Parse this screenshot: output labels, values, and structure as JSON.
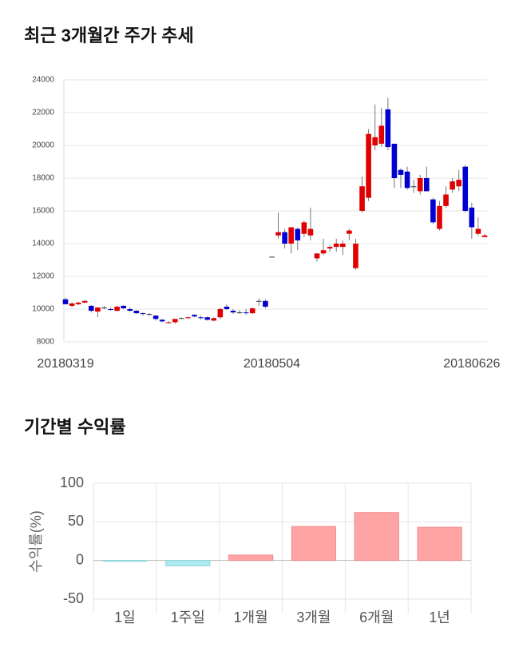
{
  "chart_data": [
    {
      "type": "candlestick",
      "title": "최근 3개월간 주가 추세",
      "categories": [
        "20180319",
        null,
        null,
        null,
        null,
        null,
        null,
        null,
        null,
        null,
        null,
        null,
        null,
        null,
        null,
        null,
        null,
        null,
        null,
        null,
        null,
        null,
        null,
        null,
        null,
        null,
        null,
        null,
        null,
        null,
        null,
        null,
        "20180504",
        null,
        null,
        null,
        null,
        null,
        null,
        null,
        null,
        null,
        null,
        null,
        null,
        null,
        null,
        null,
        null,
        null,
        null,
        null,
        null,
        null,
        null,
        null,
        null,
        null,
        null,
        null,
        null,
        null,
        null,
        "20180626",
        null,
        null
      ],
      "open": [
        10600,
        10200,
        10300,
        10400,
        10200,
        9850,
        10100,
        10000,
        9900,
        10200,
        10000,
        9900,
        9750,
        9700,
        9600,
        9350,
        9150,
        9200,
        9450,
        9450,
        9650,
        9500,
        9500,
        9300,
        9500,
        10150,
        9900,
        9800,
        9800,
        9750,
        10500,
        10500,
        13200,
        14500,
        14700,
        14000,
        14900,
        14600,
        14500,
        13100,
        13400,
        13700,
        13800,
        13800,
        14600,
        12500,
        16000,
        16800,
        20000,
        20100,
        22200,
        20100,
        18500,
        18400,
        17500,
        17200,
        18000,
        16700,
        14900,
        16300,
        17300,
        17500,
        18700,
        16200,
        14600,
        14400
      ],
      "high": [
        10700,
        10400,
        10450,
        10550,
        10250,
        10100,
        10200,
        10100,
        10200,
        10250,
        10100,
        9950,
        9800,
        9750,
        9650,
        9400,
        9250,
        9400,
        9500,
        9550,
        9700,
        9600,
        9550,
        9500,
        10100,
        10300,
        10000,
        9950,
        10000,
        10100,
        10650,
        10600,
        13200,
        15900,
        14900,
        15000,
        15000,
        15400,
        16200,
        13400,
        14300,
        13900,
        14300,
        14200,
        14900,
        14300,
        18100,
        21000,
        22500,
        22300,
        22900,
        20100,
        18600,
        18700,
        17900,
        18200,
        18700,
        16800,
        16600,
        17500,
        18000,
        18500,
        18800,
        16500,
        15600,
        14600
      ],
      "low": [
        10300,
        10100,
        10250,
        10350,
        9800,
        9500,
        10000,
        9900,
        9850,
        10000,
        9850,
        9700,
        9600,
        9600,
        9300,
        9200,
        9100,
        9100,
        9400,
        9400,
        9500,
        9350,
        9300,
        9250,
        9400,
        9950,
        9700,
        9700,
        9650,
        9700,
        10200,
        10050,
        13200,
        14300,
        13700,
        13400,
        13600,
        14400,
        14200,
        12900,
        13300,
        13500,
        13500,
        13300,
        14200,
        12400,
        15900,
        16600,
        19700,
        19900,
        19700,
        17400,
        17400,
        17300,
        17100,
        17000,
        17200,
        15200,
        14800,
        16200,
        17100,
        17200,
        15900,
        14300,
        14500,
        14400
      ],
      "close": [
        10300,
        10350,
        10400,
        10500,
        9900,
        10100,
        10100,
        9950,
        10150,
        10050,
        9900,
        9750,
        9700,
        9700,
        9400,
        9250,
        9200,
        9400,
        9450,
        9500,
        9550,
        9450,
        9350,
        9450,
        10000,
        10000,
        9800,
        9800,
        9750,
        10050,
        10500,
        10150,
        13200,
        14700,
        14000,
        15000,
        14200,
        15300,
        14900,
        13400,
        13600,
        13800,
        14000,
        14000,
        14800,
        14000,
        17500,
        20700,
        20500,
        21200,
        19900,
        18000,
        18200,
        17400,
        17500,
        18000,
        17200,
        15300,
        16300,
        17000,
        17800,
        17900,
        16000,
        15000,
        14900,
        14500
      ],
      "up_color": "#e00000",
      "down_color": "#0000d0",
      "ylim": [
        8000,
        24000
      ],
      "yticks": [
        8000,
        10000,
        12000,
        14000,
        16000,
        18000,
        20000,
        22000,
        24000
      ],
      "grid": true
    },
    {
      "type": "bar",
      "title": "기간별 수익률",
      "ylabel": "수익률(%)",
      "categories": [
        "1일",
        "1주일",
        "1개월",
        "3개월",
        "6개월",
        "1년"
      ],
      "values": [
        -0.2,
        -7,
        7,
        44,
        62,
        43
      ],
      "positive_color": "#ffa4a4",
      "negative_color": "#aeeaf2",
      "ylim": [
        -50,
        100
      ],
      "yticks": [
        -50,
        0,
        50,
        100
      ],
      "grid": true
    }
  ]
}
